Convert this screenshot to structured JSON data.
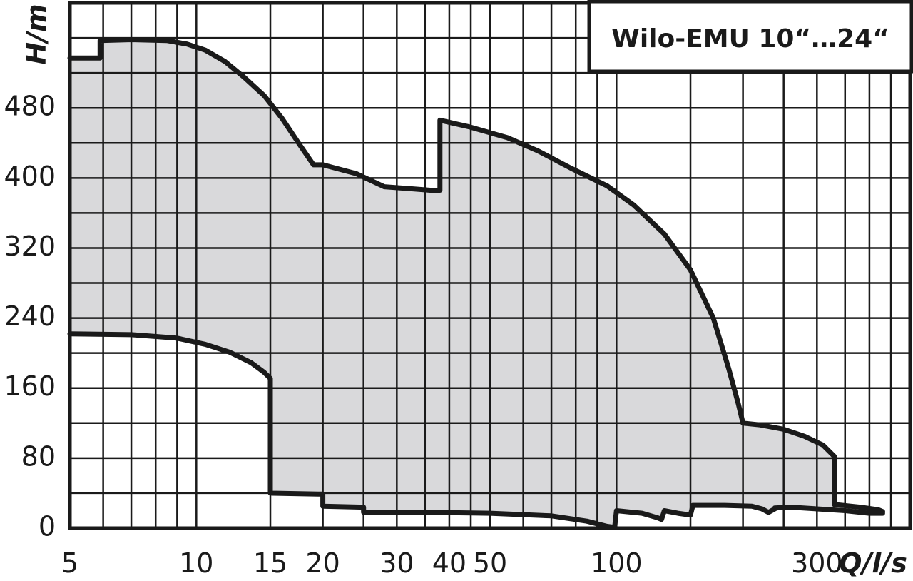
{
  "chart_data": {
    "type": "area",
    "title": "Wilo-EMU 10“…24“",
    "xlabel": "Q/l/s",
    "ylabel": "H/m",
    "x_scale": "log",
    "xlim": [
      5,
      500
    ],
    "ylim": [
      0,
      600
    ],
    "x_ticks": [
      5,
      10,
      15,
      20,
      30,
      40,
      50,
      100,
      300
    ],
    "y_ticks": [
      0,
      80,
      160,
      240,
      320,
      400,
      480
    ],
    "x_grid": [
      5,
      6,
      7,
      8,
      9,
      10,
      15,
      20,
      25,
      30,
      35,
      40,
      45,
      50,
      60,
      70,
      80,
      90,
      100,
      150,
      200,
      250,
      300,
      350,
      400,
      450,
      500
    ],
    "y_grid": [
      0,
      40,
      80,
      120,
      160,
      200,
      240,
      280,
      320,
      360,
      400,
      440,
      480,
      520,
      560
    ],
    "grid": true,
    "colors": {
      "fill": "#d9d9db",
      "line": "#1a1a1a",
      "grid": "#1a1a1a"
    },
    "series": [
      {
        "role": "upper",
        "points": [
          [
            5,
            537
          ],
          [
            5.9,
            537
          ],
          [
            5.9,
            557
          ],
          [
            7,
            558
          ],
          [
            8.5,
            557
          ],
          [
            9.5,
            553
          ],
          [
            10.5,
            546
          ],
          [
            11.7,
            533
          ],
          [
            13,
            515
          ],
          [
            14.5,
            494
          ],
          [
            16,
            468
          ],
          [
            17.5,
            440
          ],
          [
            19,
            415
          ],
          [
            20,
            415
          ],
          [
            24,
            405
          ],
          [
            28,
            390
          ],
          [
            32,
            388
          ],
          [
            36,
            386
          ],
          [
            38,
            386
          ],
          [
            38,
            466
          ],
          [
            45,
            458
          ],
          [
            55,
            446
          ],
          [
            65,
            431
          ],
          [
            78,
            411
          ],
          [
            95,
            391
          ],
          [
            110,
            369
          ],
          [
            130,
            336
          ],
          [
            150,
            295
          ],
          [
            170,
            240
          ],
          [
            185,
            182
          ],
          [
            195,
            142
          ],
          [
            200,
            120
          ],
          [
            220,
            118
          ],
          [
            250,
            113
          ],
          [
            280,
            105
          ],
          [
            310,
            95
          ],
          [
            330,
            82
          ],
          [
            330,
            27
          ],
          [
            380,
            24
          ],
          [
            420,
            21
          ],
          [
            430,
            19
          ]
        ]
      },
      {
        "role": "lower",
        "points": [
          [
            5,
            222
          ],
          [
            7,
            221
          ],
          [
            9,
            217
          ],
          [
            10.5,
            210
          ],
          [
            12,
            201
          ],
          [
            13.5,
            189
          ],
          [
            14.5,
            178
          ],
          [
            15,
            171
          ],
          [
            15,
            40
          ],
          [
            19.5,
            39
          ],
          [
            20,
            39
          ],
          [
            20,
            25
          ],
          [
            25,
            24
          ],
          [
            25,
            18
          ],
          [
            35,
            18
          ],
          [
            50,
            17
          ],
          [
            70,
            14
          ],
          [
            85,
            8
          ],
          [
            95,
            2
          ],
          [
            99,
            1
          ],
          [
            100,
            20
          ],
          [
            115,
            17
          ],
          [
            125,
            12
          ],
          [
            128,
            10
          ],
          [
            130,
            20
          ],
          [
            140,
            17
          ],
          [
            150,
            15
          ],
          [
            152,
            26
          ],
          [
            180,
            26
          ],
          [
            210,
            25
          ],
          [
            222,
            22
          ],
          [
            230,
            18
          ],
          [
            240,
            23
          ],
          [
            238,
            23
          ],
          [
            260,
            24
          ],
          [
            300,
            22
          ],
          [
            350,
            20
          ],
          [
            400,
            17
          ],
          [
            430,
            17
          ]
        ]
      }
    ]
  }
}
